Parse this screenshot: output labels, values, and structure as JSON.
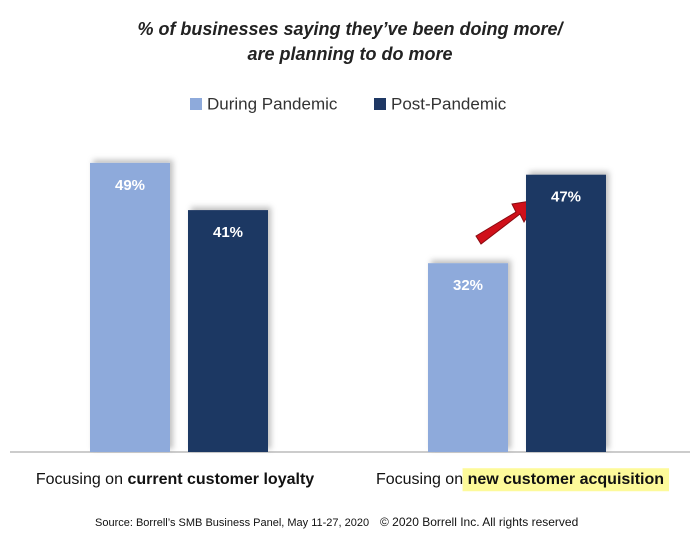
{
  "chart_data": {
    "type": "bar",
    "title": [
      "% of businesses saying they’ve been doing more/",
      "are planning to do more"
    ],
    "category_prefix": "Focusing on",
    "categories": [
      "current customer loyalty",
      "new customer acquisition"
    ],
    "category_highlight": [
      null,
      "#fdfa9a"
    ],
    "series": [
      {
        "name": "During Pandemic",
        "color": "#8eaadb",
        "values": [
          49,
          32
        ],
        "value_labels": [
          "49%",
          "32%"
        ]
      },
      {
        "name": "Post-Pandemic",
        "color": "#1f3864",
        "values": [
          41,
          47
        ],
        "value_labels": [
          "41%",
          "47%"
        ]
      }
    ],
    "ylim": [
      0,
      50
    ],
    "source": "Source: Borrell’s SMB Business Panel, May 11-27, 2020",
    "copyright": "© 2020 Borrell Inc. All rights reserved"
  }
}
